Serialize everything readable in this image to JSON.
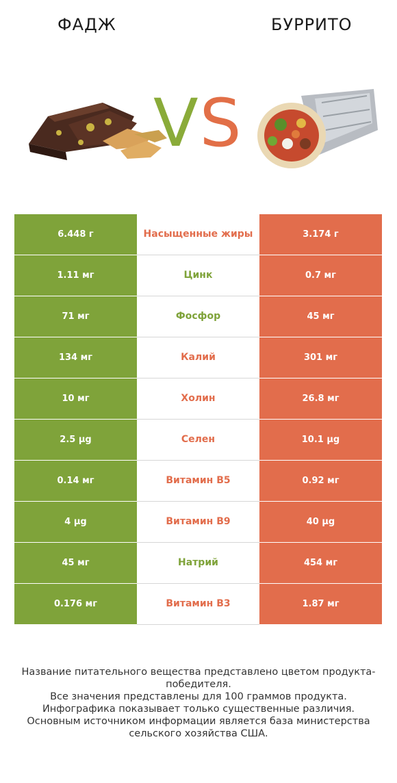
{
  "header": {
    "left_title": "ФАДЖ",
    "right_title": "БУРРИТО",
    "vs_v": "V",
    "vs_s": "S"
  },
  "colors": {
    "left": "#7fa33a",
    "right": "#e26d4c"
  },
  "rows": [
    {
      "left": "6.448 г",
      "label": "Насыщенные жиры",
      "right": "3.174 г",
      "winner": "right"
    },
    {
      "left": "1.11 мг",
      "label": "Цинк",
      "right": "0.7 мг",
      "winner": "left"
    },
    {
      "left": "71 мг",
      "label": "Фосфор",
      "right": "45 мг",
      "winner": "left"
    },
    {
      "left": "134 мг",
      "label": "Калий",
      "right": "301 мг",
      "winner": "right"
    },
    {
      "left": "10 мг",
      "label": "Холин",
      "right": "26.8 мг",
      "winner": "right"
    },
    {
      "left": "2.5 µg",
      "label": "Селен",
      "right": "10.1 µg",
      "winner": "right"
    },
    {
      "left": "0.14 мг",
      "label": "Витамин B5",
      "right": "0.92 мг",
      "winner": "right"
    },
    {
      "left": "4 µg",
      "label": "Витамин B9",
      "right": "40 µg",
      "winner": "right"
    },
    {
      "left": "45 мг",
      "label": "Натрий",
      "right": "454 мг",
      "winner": "left"
    },
    {
      "left": "0.176 мг",
      "label": "Витамин B3",
      "right": "1.87 мг",
      "winner": "right"
    }
  ],
  "footnote": [
    "Название питательного вещества представлено цветом продукта-победителя.",
    "Все значения представлены для 100 граммов продукта.",
    "Инфографика показывает только существенные различия.",
    "Основным источником информации является база министерства сельского хозяйства США."
  ]
}
